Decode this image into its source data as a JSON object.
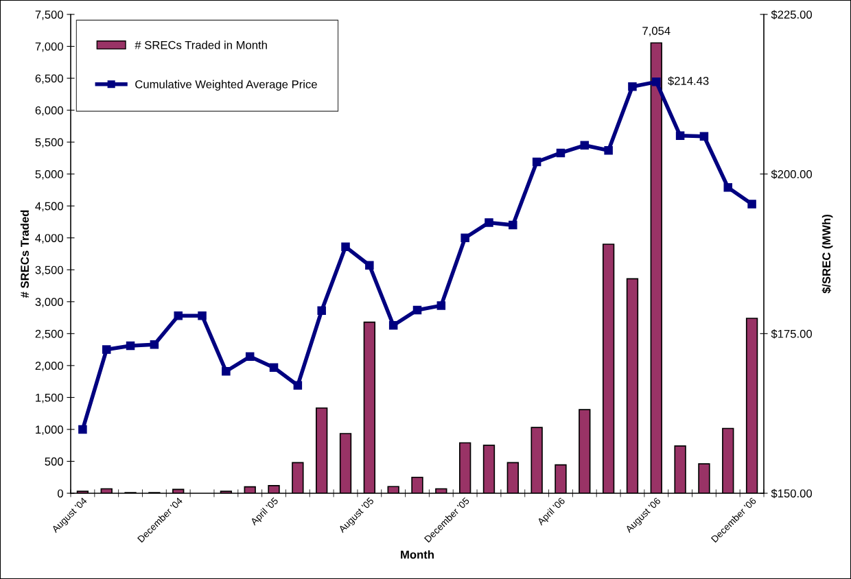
{
  "chart_data": {
    "type": "bar",
    "xlabel": "Month",
    "ylabel": "# SRECs Traded",
    "y2label": "$/SREC (MWh)",
    "categories": [
      "August '04",
      null,
      null,
      null,
      "December '04",
      null,
      null,
      null,
      "April '05",
      null,
      null,
      null,
      "August '05",
      null,
      null,
      null,
      "December '05",
      null,
      null,
      null,
      "April '06",
      null,
      null,
      null,
      "August '06",
      null,
      null,
      null,
      "December '06"
    ],
    "series": [
      {
        "name": "# SRECs Traded in Month",
        "color": "#993366",
        "values": [
          30,
          70,
          10,
          10,
          60,
          null,
          30,
          100,
          120,
          480,
          1335,
          935,
          2680,
          105,
          250,
          70,
          790,
          750,
          480,
          1030,
          445,
          1310,
          3900,
          3360,
          7054,
          740,
          460,
          1015,
          2740
        ],
        "value_labels": [
          null,
          null,
          null,
          null,
          null,
          null,
          null,
          null,
          null,
          null,
          null,
          null,
          null,
          null,
          null,
          null,
          null,
          null,
          null,
          null,
          null,
          null,
          null,
          null,
          "7,054",
          null,
          null,
          null,
          null
        ]
      },
      {
        "name": "Cumulative Weighted Average Price",
        "type": "line",
        "axis": "y2",
        "color": "#000080",
        "marker": "square",
        "values": [
          160.0,
          172.5,
          173.1,
          173.3,
          177.8,
          177.8,
          169.1,
          171.4,
          169.7,
          166.9,
          178.6,
          188.6,
          185.7,
          176.3,
          178.7,
          179.4,
          190.0,
          192.4,
          192.0,
          201.9,
          203.3,
          204.5,
          203.7,
          213.7,
          214.43,
          206.0,
          205.9,
          197.9,
          195.3
        ],
        "value_labels": [
          null,
          null,
          null,
          null,
          null,
          null,
          null,
          null,
          null,
          null,
          null,
          null,
          null,
          null,
          null,
          null,
          null,
          null,
          null,
          null,
          null,
          null,
          null,
          null,
          "$214.43",
          null,
          null,
          null,
          null
        ]
      }
    ],
    "ylim": [
      0,
      7500
    ],
    "yticks": [
      0,
      {
        "value": 500,
        "label": "500"
      },
      {
        "value": 1000,
        "label": "1,000"
      },
      {
        "value": 1500,
        "label": "1,500"
      },
      {
        "value": 2000,
        "label": "2,000"
      },
      {
        "value": 2500,
        "label": "2,500"
      },
      {
        "value": 3000,
        "label": "3,000"
      },
      {
        "value": 3500,
        "label": "3,500"
      },
      {
        "value": 4000,
        "label": "4,000"
      },
      {
        "value": 4500,
        "label": "4,500"
      },
      {
        "value": 5000,
        "label": "5,000"
      },
      {
        "value": 5500,
        "label": "5,500"
      },
      {
        "value": 6000,
        "label": "6,000"
      },
      {
        "value": 6500,
        "label": "6,500"
      },
      {
        "value": 7000,
        "label": "7,000"
      },
      {
        "value": 7500,
        "label": "7,500"
      }
    ],
    "y2lim": [
      150,
      225
    ],
    "y2ticks": [
      {
        "value": 150,
        "label": "$150.00"
      },
      {
        "value": 175,
        "label": "$175.00"
      },
      {
        "value": 200,
        "label": "$200.00"
      },
      {
        "value": 225,
        "label": "$225.00"
      }
    ],
    "grid": false,
    "legend": "top left"
  }
}
